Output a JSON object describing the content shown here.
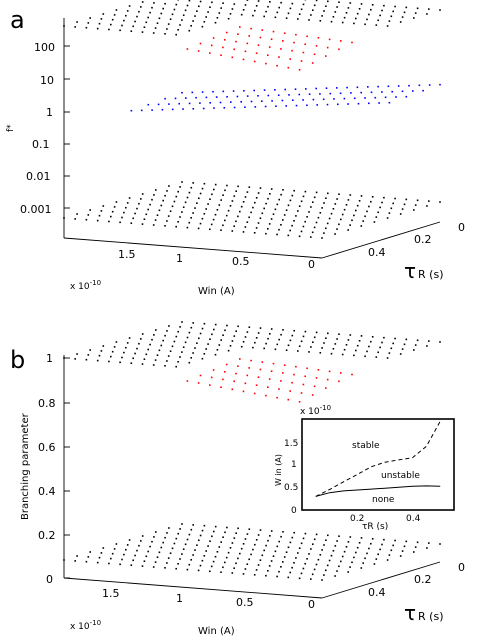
{
  "panel_a": {
    "letter": "a",
    "y_label": "f*",
    "y_ticks": [
      "100",
      "10",
      "1",
      "0.1",
      "0.01",
      "0.001"
    ],
    "win_ticks": [
      "1.5",
      "1",
      "0.5",
      "0"
    ],
    "win_multiplier": "x 10",
    "win_multiplier_exp": "-10",
    "win_label": "Win (A)",
    "tau_ticks": [
      "0",
      "0.2",
      "0.4"
    ],
    "tau_label_main": "τ",
    "tau_label_sub": "R (s)"
  },
  "panel_b": {
    "letter": "b",
    "y_label": "Branching parameter",
    "y_ticks": [
      "1",
      "0.8",
      "0.6",
      "0.4",
      "0.2",
      "0"
    ],
    "win_ticks": [
      "1.5",
      "1",
      "0.5",
      "0"
    ],
    "win_multiplier": "x 10",
    "win_multiplier_exp": "-10",
    "win_label": "Win (A)",
    "tau_ticks": [
      "0",
      "0.2",
      "0.4"
    ],
    "tau_label_main": "τ",
    "tau_label_sub": "R (s)"
  },
  "inset": {
    "multiplier": "x 10",
    "multiplier_exp": "-10",
    "y_ticks": [
      "1.5",
      "1",
      "0.5",
      "0"
    ],
    "x_ticks": [
      "0.2",
      "0.4"
    ],
    "y_label": "W in (A)",
    "x_label": "τR (s)",
    "region_stable": "stable",
    "region_unstable": "unstable",
    "region_none": "none"
  },
  "chart_data": [
    {
      "type": "scatter",
      "panel": "a",
      "z_axis": "f*",
      "z_scale": "log",
      "x_axis": "Win (A)",
      "x_range": [
        0,
        1.8e-10
      ],
      "y_axis": "τR (s)",
      "y_range": [
        0,
        0.5
      ],
      "series": [
        {
          "color": "#000000",
          "surface": "top",
          "z": 100
        },
        {
          "color": "#ff0000",
          "surface": "middle"
        },
        {
          "color": "#0000ff",
          "surface": "lower"
        },
        {
          "color": "#000000",
          "surface": "floor",
          "z": 0.001
        }
      ]
    },
    {
      "type": "scatter",
      "panel": "b",
      "z_axis": "Branching parameter",
      "z_range": [
        0,
        1
      ],
      "x_axis": "Win (A)",
      "x_range": [
        0,
        1.8e-10
      ],
      "y_axis": "τR (s)",
      "y_range": [
        0,
        0.5
      ],
      "series": [
        {
          "color": "#000000",
          "surface": "top",
          "z": 1
        },
        {
          "color": "#ff0000",
          "surface": "middle"
        },
        {
          "color": "#000000",
          "surface": "floor",
          "z": 0
        }
      ]
    },
    {
      "type": "line",
      "panel": "b-inset",
      "x_axis": "τR (s)",
      "y_axis": "W in (A)",
      "series": [
        {
          "style": "dashed",
          "x": [
            0.05,
            0.1,
            0.15,
            0.2,
            0.25,
            0.3,
            0.35,
            0.4,
            0.45,
            0.5
          ],
          "y": [
            0.3,
            0.45,
            0.62,
            0.78,
            0.95,
            1.05,
            1.1,
            1.15,
            1.4,
            1.95
          ]
        },
        {
          "style": "solid",
          "x": [
            0.05,
            0.1,
            0.15,
            0.2,
            0.25,
            0.3,
            0.35,
            0.4,
            0.45,
            0.5
          ],
          "y": [
            0.3,
            0.38,
            0.42,
            0.44,
            0.46,
            0.48,
            0.5,
            0.52,
            0.53,
            0.52
          ]
        }
      ]
    }
  ]
}
